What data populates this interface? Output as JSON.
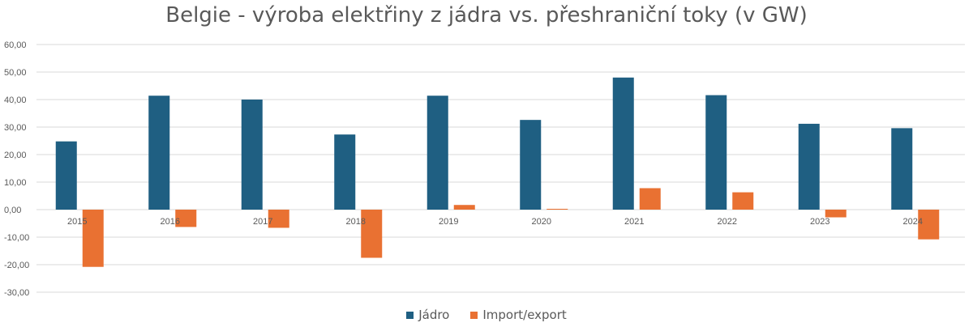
{
  "colors": {
    "jadro": "#1F5F82",
    "import_export": "#E97132",
    "grid": "#D9D9D9",
    "text": "#595959"
  },
  "legend": {
    "jadro": "Jádro",
    "import_export": "Import/export"
  },
  "chart_data": {
    "type": "bar",
    "title": "Belgie - výroba elektřiny z jádra vs. přeshraniční toky (v GW)",
    "xlabel": "",
    "ylabel": "",
    "categories": [
      "2015",
      "2016",
      "2017",
      "2018",
      "2019",
      "2020",
      "2021",
      "2022",
      "2023",
      "2024"
    ],
    "series": [
      {
        "name": "Jádro",
        "values": [
          24.8,
          41.4,
          40.0,
          27.3,
          41.4,
          32.6,
          48.0,
          41.6,
          31.2,
          29.6
        ]
      },
      {
        "name": "Import/export",
        "values": [
          -20.8,
          -6.3,
          -6.6,
          -17.5,
          1.7,
          0.3,
          7.8,
          6.3,
          -2.8,
          -10.8
        ]
      }
    ],
    "ylim": [
      -30,
      60
    ],
    "yticks": [
      "-30,00",
      "-20,00",
      "-10,00",
      "0,00",
      "10,00",
      "20,00",
      "30,00",
      "40,00",
      "50,00",
      "60,00"
    ],
    "grid": true,
    "legend_position": "bottom"
  }
}
